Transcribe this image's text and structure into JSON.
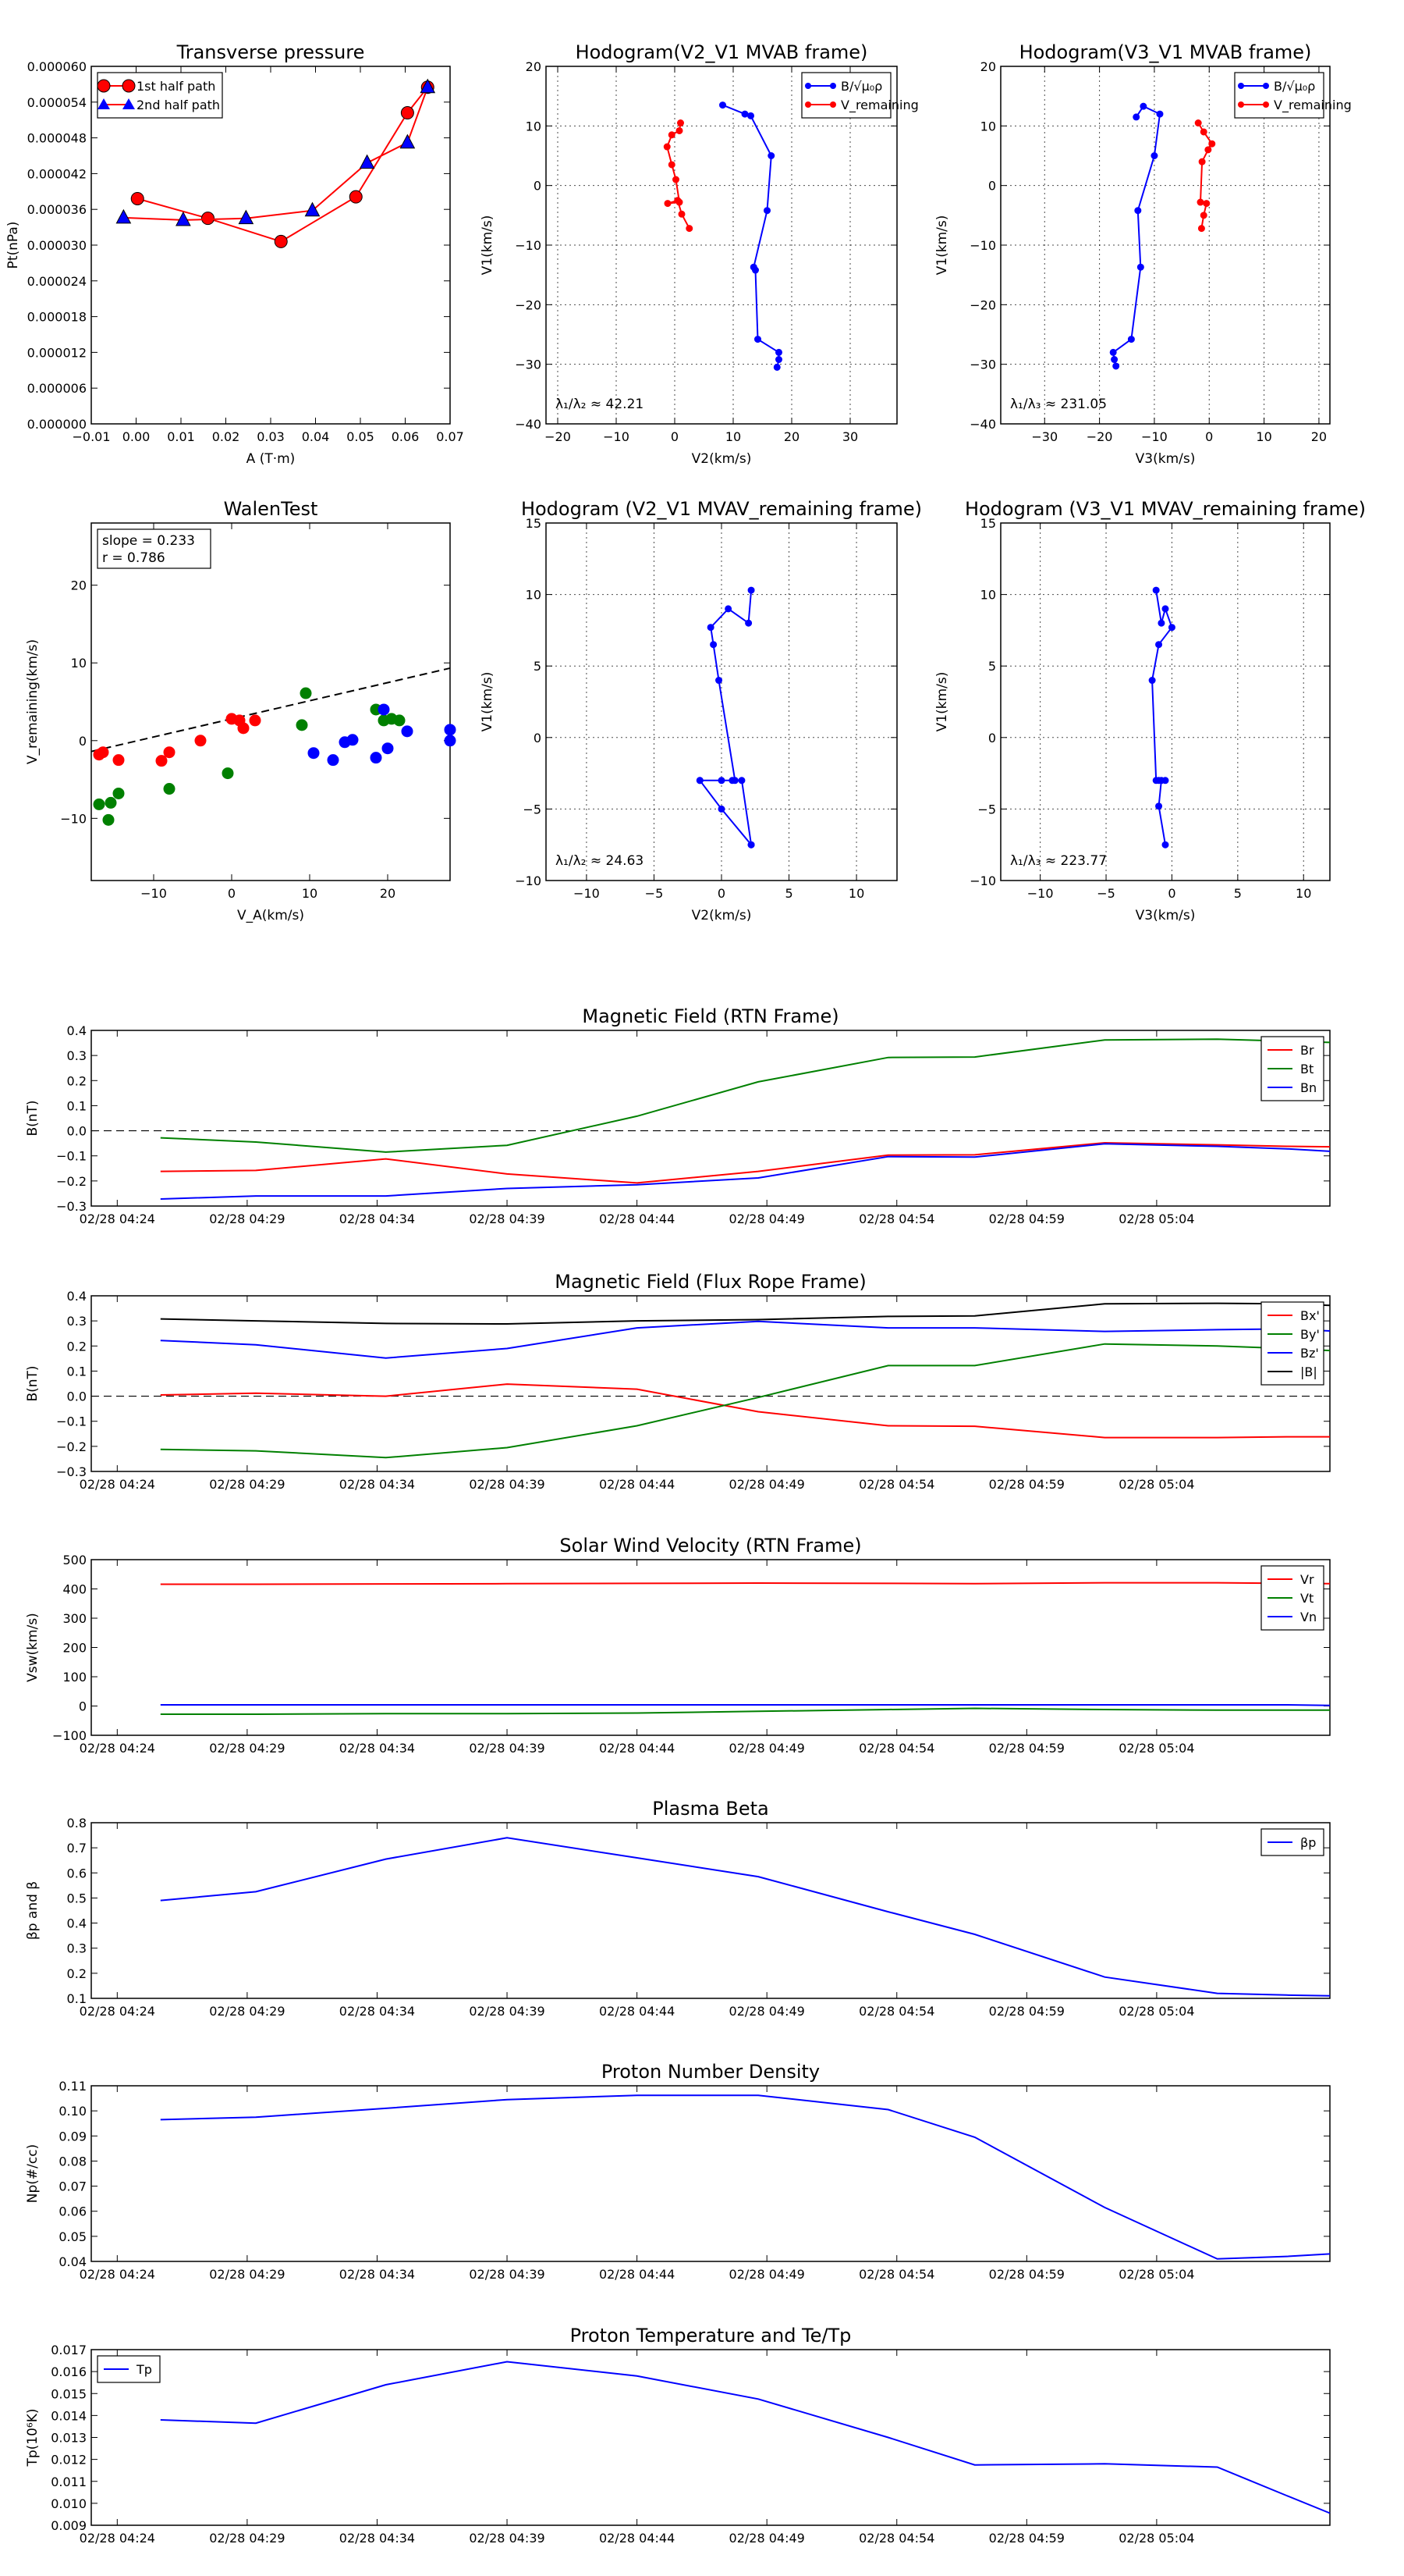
{
  "chart_data": [
    {
      "id": "tp",
      "type": "line",
      "title": "Transverse pressure",
      "xlabel": "A (T·m)",
      "ylabel": "Pt(nPa)",
      "xlim": [
        -0.01,
        0.07
      ],
      "ylim": [
        0,
        6e-05
      ],
      "xticks": [
        -0.01,
        0.0,
        0.01,
        0.02,
        0.03,
        0.04,
        0.05,
        0.06,
        0.07
      ],
      "xtick_labels": [
        "−0.01",
        "0.00",
        "0.01",
        "0.02",
        "0.03",
        "0.04",
        "0.05",
        "0.06",
        "0.07"
      ],
      "yticks": [
        0,
        6e-06,
        1.2e-05,
        1.8e-05,
        2.4e-05,
        3e-05,
        3.6e-05,
        4.2e-05,
        4.8e-05,
        5.4e-05,
        6e-05
      ],
      "ytick_labels": [
        "0.000000",
        "0.000006",
        "0.000012",
        "0.000018",
        "0.000024",
        "0.000030",
        "0.000036",
        "0.000042",
        "0.000048",
        "0.000054",
        "0.000060"
      ],
      "legend": "top-left",
      "grid": false,
      "series": [
        {
          "name": "1st half path",
          "color": "#ff0000",
          "marker": "circle",
          "x": [
            0.065,
            0.0605,
            0.049,
            0.0323,
            0.016,
            0.0003
          ],
          "y": [
            5.65e-05,
            5.22e-05,
            3.81e-05,
            3.06e-05,
            3.45e-05,
            3.78e-05
          ]
        },
        {
          "name": "2nd half path",
          "color": "#0000ff",
          "line_color": "#ff0000",
          "marker": "triangle",
          "x": [
            0.065,
            0.0605,
            0.0515,
            0.0393,
            0.0245,
            0.0105,
            -0.0028
          ],
          "y": [
            5.65e-05,
            4.72e-05,
            4.38e-05,
            3.58e-05,
            3.45e-05,
            3.42e-05,
            3.46e-05
          ]
        }
      ]
    },
    {
      "id": "h1",
      "type": "line",
      "title": "Hodogram(V2_V1 MVAB frame)",
      "xlabel": "V2(km/s)",
      "ylabel": "V1(km/s)",
      "xlim": [
        -22,
        38
      ],
      "ylim": [
        -40,
        20
      ],
      "xticks": [
        -20,
        -10,
        0,
        10,
        20,
        30
      ],
      "xtick_labels": [
        "−20",
        "−10",
        "0",
        "10",
        "20",
        "30"
      ],
      "yticks": [
        -40,
        -30,
        -20,
        -10,
        0,
        10,
        20
      ],
      "ytick_labels": [
        "−40",
        "−30",
        "−20",
        "−10",
        "0",
        "10",
        "20"
      ],
      "grid": true,
      "legend": "top-right",
      "ratio": "λ₁/λ₂ ≈ 42.21",
      "series": [
        {
          "name": "B/√μ₀ρ",
          "color": "#0000ff",
          "x": [
            8.2,
            12,
            13,
            16.5,
            15.8,
            13.5,
            13.8,
            14.2,
            17.8,
            17.8,
            17.5
          ],
          "y": [
            13.5,
            12.0,
            11.7,
            5.0,
            -4.2,
            -13.7,
            -14.2,
            -25.8,
            -28.0,
            -29.2,
            -30.5
          ]
        },
        {
          "name": "V_remaining",
          "color": "#ff0000",
          "x": [
            1.0,
            0.8,
            -0.5,
            -1.3,
            -0.5,
            0.2,
            0.8,
            -1.2,
            0.5,
            1.2,
            2.5
          ],
          "y": [
            10.5,
            9.2,
            8.5,
            6.5,
            3.5,
            1.0,
            -2.8,
            -3.0,
            -2.5,
            -4.8,
            -7.2
          ]
        }
      ]
    },
    {
      "id": "h2",
      "type": "line",
      "title": "Hodogram(V3_V1 MVAB frame)",
      "xlabel": "V3(km/s)",
      "ylabel": "V1(km/s)",
      "xlim": [
        -38,
        22
      ],
      "ylim": [
        -40,
        20
      ],
      "xticks": [
        -30,
        -20,
        -10,
        0,
        10,
        20
      ],
      "xtick_labels": [
        "−30",
        "−20",
        "−10",
        "0",
        "10",
        "20"
      ],
      "yticks": [
        -40,
        -30,
        -20,
        -10,
        0,
        10,
        20
      ],
      "ytick_labels": [
        "−40",
        "−30",
        "−20",
        "−10",
        "0",
        "10",
        "20"
      ],
      "grid": true,
      "legend": "top-right",
      "ratio": "λ₁/λ₃ ≈ 231.05",
      "series": [
        {
          "name": "B/√μ₀ρ",
          "color": "#0000ff",
          "x": [
            -13.3,
            -12.0,
            -9.0,
            -10.0,
            -13.0,
            -12.5,
            -14.2,
            -17.5,
            -17.3,
            -17.0
          ],
          "y": [
            11.5,
            13.3,
            12.0,
            5.0,
            -4.2,
            -13.7,
            -25.8,
            -28.0,
            -29.2,
            -30.3
          ]
        },
        {
          "name": "V_remaining",
          "color": "#ff0000",
          "x": [
            -2.0,
            -1.0,
            0.5,
            -0.2,
            -1.3,
            -1.6,
            -0.5,
            -1.0,
            -1.4
          ],
          "y": [
            10.5,
            9.0,
            7.0,
            6.0,
            4.0,
            -2.8,
            -3.0,
            -5.0,
            -7.2
          ]
        }
      ]
    },
    {
      "id": "walen",
      "type": "scatter",
      "title": "WalenTest",
      "xlabel": "V_A(km/s)",
      "ylabel": "V_remaining(km/s)",
      "xlim": [
        -18,
        28
      ],
      "ylim": [
        -18,
        28
      ],
      "xticks": [
        -10,
        0,
        10,
        20
      ],
      "xtick_labels": [
        "−10",
        "0",
        "10",
        "20"
      ],
      "yticks": [
        -10,
        0,
        10,
        20
      ],
      "ytick_labels": [
        "−10",
        "0",
        "10",
        "20"
      ],
      "grid": false,
      "annotation": [
        "slope = 0.233",
        "r = 0.786"
      ],
      "fit_line": {
        "slope": 0.233,
        "intercept": 2.8
      },
      "series": [
        {
          "color": "#ff0000",
          "x": [
            -17,
            -16.5,
            -14.5,
            -9,
            -8,
            -4,
            0,
            1,
            1.5,
            3
          ],
          "y": [
            -1.8,
            -1.5,
            -2.5,
            -2.6,
            -1.5,
            0,
            2.8,
            2.6,
            1.6,
            2.6
          ]
        },
        {
          "color": "#008000",
          "x": [
            -17,
            -15.5,
            -14.5,
            -15.8,
            -8,
            -0.5,
            9,
            9.5,
            18.5,
            19.5,
            20.5,
            21.5
          ],
          "y": [
            -8.2,
            -8,
            -6.8,
            -10.2,
            -6.2,
            -4.2,
            2,
            6.1,
            4,
            2.6,
            2.8,
            2.6
          ]
        },
        {
          "color": "#0000ff",
          "x": [
            10.5,
            13,
            14.5,
            15.5,
            18.5,
            19.5,
            20,
            22.5,
            28,
            28
          ],
          "y": [
            -1.6,
            -2.5,
            -0.2,
            0.1,
            -2.2,
            4,
            -1,
            1.2,
            1.4,
            0
          ]
        }
      ]
    },
    {
      "id": "h3",
      "type": "line",
      "title": "Hodogram (V2_V1 MVAV_remaining frame)",
      "xlabel": "V2(km/s)",
      "ylabel": "V1(km/s)",
      "xlim": [
        -13,
        13
      ],
      "ylim": [
        -10,
        15
      ],
      "xticks": [
        -10,
        -5,
        0,
        5,
        10
      ],
      "xtick_labels": [
        "−10",
        "−5",
        "0",
        "5",
        "10"
      ],
      "yticks": [
        -10,
        -5,
        0,
        5,
        10,
        15
      ],
      "ytick_labels": [
        "−10",
        "−5",
        "0",
        "5",
        "10",
        "15"
      ],
      "grid": true,
      "ratio": "λ₁/λ₂ ≈ 24.63",
      "series": [
        {
          "color": "#0000ff",
          "x": [
            2.2,
            2.0,
            0.5,
            -0.8,
            -0.6,
            -0.2,
            1.0,
            0.0,
            -1.6,
            0.8,
            1.5,
            2.2
          ],
          "y": [
            10.3,
            8.0,
            9.0,
            7.7,
            6.5,
            4.0,
            -3.0,
            -3.0,
            -3.0,
            -3.0,
            -3.0,
            -7.5
          ]
        },
        {
          "color": "#0000ff",
          "x": [
            -1.6,
            0.0,
            2.2
          ],
          "y": [
            -3.0,
            -5.0,
            -7.5
          ]
        }
      ]
    },
    {
      "id": "h4",
      "type": "line",
      "title": "Hodogram (V3_V1 MVAV_remaining frame)",
      "xlabel": "V3(km/s)",
      "ylabel": "V1(km/s)",
      "xlim": [
        -13,
        12
      ],
      "ylim": [
        -10,
        15
      ],
      "xticks": [
        -10,
        -5,
        0,
        5,
        10
      ],
      "xtick_labels": [
        "−10",
        "−5",
        "0",
        "5",
        "10"
      ],
      "yticks": [
        -10,
        -5,
        0,
        5,
        10,
        15
      ],
      "ytick_labels": [
        "−10",
        "−5",
        "0",
        "5",
        "10",
        "15"
      ],
      "grid": true,
      "ratio": "λ₁/λ₃ ≈ 223.77",
      "series": [
        {
          "color": "#0000ff",
          "x": [
            -1.2,
            -0.8,
            -0.5,
            0.0,
            -1.0,
            -1.5,
            -1.2,
            -1.0,
            -0.5,
            -0.8,
            -1.0,
            -0.5
          ],
          "y": [
            10.3,
            8.0,
            9.0,
            7.7,
            6.5,
            4.0,
            -3.0,
            -3.0,
            -3.0,
            -3.0,
            -4.8,
            -7.5
          ]
        }
      ]
    },
    {
      "id": "ts1",
      "type": "line",
      "title": "Magnetic Field (RTN Frame)",
      "ylabel": "B(nT)",
      "xlim": [
        -0.3,
        14.0
      ],
      "ylim": [
        -0.3,
        0.4
      ],
      "yticks": [
        -0.3,
        -0.2,
        -0.1,
        0.0,
        0.1,
        0.2,
        0.3,
        0.4
      ],
      "ytick_labels": [
        "−0.3",
        "−0.2",
        "−0.1",
        "0.0",
        "0.1",
        "0.2",
        "0.3",
        "0.4"
      ],
      "zero_line": true,
      "legend": "top-right",
      "series": [
        {
          "name": "Br",
          "color": "#ff0000",
          "values": [
            -0.162,
            -0.158,
            -0.112,
            -0.172,
            -0.208,
            -0.162,
            -0.097,
            -0.096,
            -0.048,
            -0.056,
            -0.062,
            -0.064
          ]
        },
        {
          "name": "Bt",
          "color": "#008000",
          "values": [
            -0.028,
            -0.045,
            -0.085,
            -0.058,
            0.058,
            0.195,
            0.292,
            0.294,
            0.362,
            0.365,
            0.357,
            0.352
          ]
        },
        {
          "name": "Bn",
          "color": "#0000ff",
          "values": [
            -0.272,
            -0.26,
            -0.26,
            -0.23,
            -0.215,
            -0.188,
            -0.103,
            -0.105,
            -0.052,
            -0.062,
            -0.072,
            -0.082
          ]
        }
      ]
    },
    {
      "id": "ts2",
      "type": "line",
      "title": "Magnetic Field (Flux Rope Frame)",
      "ylabel": "B(nT)",
      "xlim": [
        -0.3,
        14.0
      ],
      "ylim": [
        -0.3,
        0.4
      ],
      "yticks": [
        -0.3,
        -0.2,
        -0.1,
        0.0,
        0.1,
        0.2,
        0.3,
        0.4
      ],
      "ytick_labels": [
        "−0.3",
        "−0.2",
        "−0.1",
        "0.0",
        "0.1",
        "0.2",
        "0.3",
        "0.4"
      ],
      "zero_line": true,
      "legend": "top-right",
      "series": [
        {
          "name": "Bx'",
          "color": "#ff0000",
          "values": [
            0.005,
            0.012,
            0.0,
            0.048,
            0.028,
            -0.062,
            -0.118,
            -0.12,
            -0.165,
            -0.165,
            -0.162,
            -0.162
          ]
        },
        {
          "name": "By'",
          "color": "#008000",
          "values": [
            -0.212,
            -0.218,
            -0.245,
            -0.205,
            -0.118,
            -0.005,
            0.122,
            0.122,
            0.208,
            0.2,
            0.19,
            0.182
          ]
        },
        {
          "name": "Bz'",
          "color": "#0000ff",
          "values": [
            0.222,
            0.205,
            0.152,
            0.19,
            0.272,
            0.298,
            0.272,
            0.272,
            0.258,
            0.265,
            0.268,
            0.26
          ]
        },
        {
          "name": "|B|",
          "color": "#000000",
          "values": [
            0.308,
            0.3,
            0.29,
            0.288,
            0.3,
            0.305,
            0.318,
            0.32,
            0.368,
            0.37,
            0.368,
            0.362
          ]
        }
      ]
    },
    {
      "id": "ts3",
      "type": "line",
      "title": "Solar Wind Velocity (RTN Frame)",
      "ylabel": "Vsw(km/s)",
      "xlim": [
        -0.3,
        14.0
      ],
      "ylim": [
        -100,
        500
      ],
      "yticks": [
        -100,
        0,
        100,
        200,
        300,
        400,
        500
      ],
      "ytick_labels": [
        "−100",
        "0",
        "100",
        "200",
        "300",
        "400",
        "500"
      ],
      "legend": "top-right",
      "series": [
        {
          "name": "Vr",
          "color": "#ff0000",
          "values": [
            416,
            416,
            417,
            418,
            419,
            420,
            419,
            418,
            421,
            421,
            419,
            418
          ]
        },
        {
          "name": "Vt",
          "color": "#008000",
          "values": [
            -28,
            -28,
            -26,
            -26,
            -24,
            -18,
            -12,
            -8,
            -12,
            -14,
            -14,
            -14
          ]
        },
        {
          "name": "Vn",
          "color": "#0000ff",
          "values": [
            4,
            4,
            4,
            4,
            4,
            4,
            4,
            4,
            4,
            4,
            4,
            2
          ]
        }
      ]
    },
    {
      "id": "ts4",
      "type": "line",
      "title": "Plasma Beta",
      "ylabel": "βp and β",
      "xlim": [
        -0.3,
        14.0
      ],
      "ylim": [
        0.1,
        0.8
      ],
      "yticks": [
        0.1,
        0.2,
        0.3,
        0.4,
        0.5,
        0.6,
        0.7,
        0.8
      ],
      "ytick_labels": [
        "0.1",
        "0.2",
        "0.3",
        "0.4",
        "0.5",
        "0.6",
        "0.7",
        "0.8"
      ],
      "legend": "top-right",
      "series": [
        {
          "name": "βp",
          "color": "#0000ff",
          "values": [
            0.49,
            0.525,
            0.655,
            0.74,
            0.66,
            0.585,
            0.445,
            0.355,
            0.185,
            0.12,
            0.113,
            0.11
          ]
        }
      ]
    },
    {
      "id": "ts5",
      "type": "line",
      "title": "Proton Number Density",
      "ylabel": "Np(#/cc)",
      "xlim": [
        -0.3,
        14.0
      ],
      "ylim": [
        0.04,
        0.11
      ],
      "yticks": [
        0.04,
        0.05,
        0.06,
        0.07,
        0.08,
        0.09,
        0.1,
        0.11
      ],
      "ytick_labels": [
        "0.04",
        "0.05",
        "0.06",
        "0.07",
        "0.08",
        "0.09",
        "0.10",
        "0.11"
      ],
      "series": [
        {
          "color": "#0000ff",
          "values": [
            0.0965,
            0.0975,
            0.101,
            0.1045,
            0.1062,
            0.1062,
            0.1005,
            0.0895,
            0.0615,
            0.041,
            0.042,
            0.043
          ]
        }
      ]
    },
    {
      "id": "ts6",
      "type": "line",
      "title": "Proton Temperature and Te/Tp",
      "ylabel": "Tp(10⁶K)",
      "xlim": [
        -0.3,
        14.0
      ],
      "ylim": [
        0.009,
        0.017
      ],
      "yticks": [
        0.009,
        0.01,
        0.011,
        0.012,
        0.013,
        0.014,
        0.015,
        0.016,
        0.017
      ],
      "ytick_labels": [
        "0.009",
        "0.010",
        "0.011",
        "0.012",
        "0.013",
        "0.014",
        "0.015",
        "0.016",
        "0.017"
      ],
      "legend": "top-left",
      "series": [
        {
          "name": "Tp",
          "color": "#0000ff",
          "values": [
            0.0138,
            0.01365,
            0.0154,
            0.01645,
            0.0158,
            0.01475,
            0.013,
            0.01175,
            0.0118,
            0.01165,
            0.01035,
            0.00955
          ]
        }
      ]
    }
  ],
  "time_axis": {
    "x": [
      0.5,
      1.6,
      3.1,
      4.5,
      6.0,
      7.4,
      8.9,
      9.9,
      11.4,
      12.7,
      13.5,
      14.0
    ],
    "tick_labels": [
      "02/28 04:24",
      "02/28 04:29",
      "02/28 04:34",
      "02/28 04:39",
      "02/28 04:44",
      "02/28 04:49",
      "02/28 04:54",
      "02/28 04:59",
      "02/28 05:04"
    ],
    "tick_positions": [
      0,
      1.5,
      3,
      4.5,
      6,
      7.5,
      9,
      10.5,
      12
    ]
  }
}
